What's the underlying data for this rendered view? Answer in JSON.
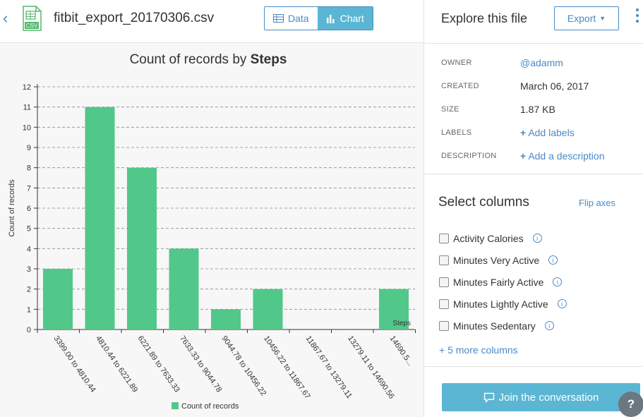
{
  "header": {
    "filename": "fitbit_export_20170306.csv",
    "file_icon_label": "CSV",
    "toggle": {
      "data_label": "Data",
      "chart_label": "Chart"
    }
  },
  "colors": {
    "accent": "#4a8ac4",
    "active": "#5bb6d4",
    "bar": "#52c78a"
  },
  "chart_data": {
    "type": "bar",
    "title_prefix": "Count of records by ",
    "title_bold": "Steps",
    "xlabel": "Steps",
    "ylabel": "Count of records",
    "categories": [
      "3399.00 to 4810.44",
      "4810.44 to 6221.89",
      "6221.89 to 7633.33",
      "7633.33 to 9044.78",
      "9044.78 to 10456.22",
      "10456.22 to 11867.67",
      "11867.67 to 13279.11",
      "13279.11 to 14690.56",
      "14690.5..."
    ],
    "series": [
      {
        "name": "Count of records",
        "values": [
          3,
          11,
          8,
          4,
          1,
          2,
          0,
          0,
          2
        ]
      }
    ],
    "ylim": [
      0,
      12
    ],
    "yticks": [
      "0",
      "1",
      "2",
      "3",
      "4",
      "5",
      "6",
      "7",
      "8",
      "9",
      "10",
      "11",
      "12"
    ],
    "grid": true,
    "legend": "bottom"
  },
  "right": {
    "title": "Explore this file",
    "export_label": "Export",
    "meta": [
      {
        "label": "OWNER",
        "value": "@adamm"
      },
      {
        "label": "CREATED",
        "value": "March 06, 2017"
      },
      {
        "label": "SIZE",
        "value": "1.87 KB"
      },
      {
        "label": "LABELS",
        "value": "Add labels"
      },
      {
        "label": "DESCRIPTION",
        "value": "Add a description"
      }
    ],
    "select_title": "Select columns",
    "flip_axes": "Flip axes",
    "columns": [
      "Activity Calories",
      "Minutes Very Active",
      "Minutes Fairly Active",
      "Minutes Lightly Active",
      "Minutes Sedentary"
    ],
    "more_columns": "+ 5 more columns",
    "join_label": "Join the conversation",
    "help_label": "?"
  }
}
